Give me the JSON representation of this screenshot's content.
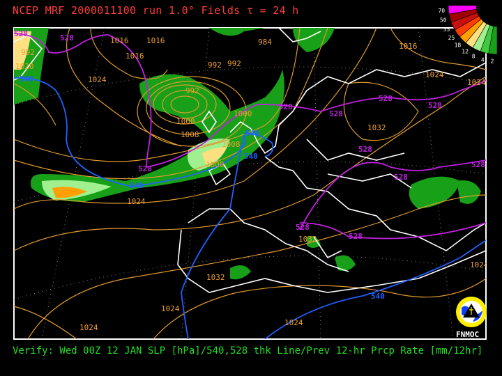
{
  "header": {
    "title": "NCEP MRF 2000011100 run 1.0° Fields τ = 24 h"
  },
  "footer": {
    "caption": "Verify: Wed 00Z 12 JAN SLP [hPa]/540,528 thk Line/Prev 12-hr Prcp Rate [mm/12hr]"
  },
  "legend": {
    "units": "mm/12hr",
    "levels": [
      "70",
      "50",
      "35",
      "25",
      "18",
      "12",
      "8",
      "4",
      "2"
    ],
    "colors": [
      "#ff00ff",
      "#a00000",
      "#c81010",
      "#ff3c00",
      "#ffa000",
      "#ffe080",
      "#a0f090",
      "#40c840",
      "#18a018"
    ]
  },
  "logo": {
    "text": "FNMOC"
  },
  "colors": {
    "isobar": "#e09a30",
    "thickness_540": "#2060ff",
    "thickness_528": "#c020e0",
    "coastline": "#ffffff",
    "precip_light": "#18a018",
    "precip_heavy": "#ffa000"
  },
  "isobar_labels": [
    {
      "text": "992"
    },
    {
      "text": "1016"
    },
    {
      "text": "1016"
    },
    {
      "text": "1024"
    },
    {
      "text": "1016"
    },
    {
      "text": "984"
    },
    {
      "text": "992"
    },
    {
      "text": "992"
    },
    {
      "text": "992"
    },
    {
      "text": "1016"
    },
    {
      "text": "1000"
    },
    {
      "text": "1008"
    },
    {
      "text": "1000"
    },
    {
      "text": "1008"
    },
    {
      "text": "1000"
    },
    {
      "text": "1032"
    },
    {
      "text": "1024"
    },
    {
      "text": "1024"
    },
    {
      "text": "1024"
    },
    {
      "text": "1032"
    },
    {
      "text": "1032"
    },
    {
      "text": "1024"
    },
    {
      "text": "1024"
    },
    {
      "text": "1024"
    },
    {
      "text": "1024"
    },
    {
      "text": "1020"
    }
  ],
  "thickness_labels": [
    {
      "text": "528",
      "line": "528"
    },
    {
      "text": "528",
      "line": "528"
    },
    {
      "text": "540",
      "line": "540"
    },
    {
      "text": "528",
      "line": "528"
    },
    {
      "text": "540",
      "line": "540"
    },
    {
      "text": "540",
      "line": "540"
    },
    {
      "text": "528",
      "line": "528"
    },
    {
      "text": "528",
      "line": "528"
    },
    {
      "text": "528",
      "line": "528"
    },
    {
      "text": "528",
      "line": "528"
    },
    {
      "text": "528",
      "line": "528"
    },
    {
      "text": "528",
      "line": "528"
    },
    {
      "text": "528",
      "line": "528"
    },
    {
      "text": "528",
      "line": "528"
    },
    {
      "text": "528",
      "line": "528"
    },
    {
      "text": "540",
      "line": "540"
    },
    {
      "text": "540",
      "line": "540"
    }
  ]
}
